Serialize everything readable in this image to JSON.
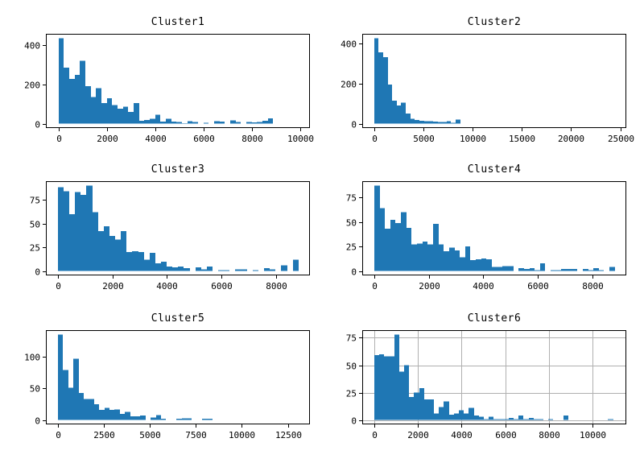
{
  "figure": {
    "background": "#ffffff",
    "rows": 3,
    "columns": 2
  },
  "colors": {
    "bar": "#1f77b4",
    "grid": "#b0b0b0",
    "axis": "#000000",
    "text": "#000000"
  },
  "chart_data": [
    {
      "type": "bar",
      "kind": "histogram",
      "title": "Cluster1",
      "xlabel": "",
      "ylabel": "",
      "bin_start": 0,
      "bin_width": 222,
      "values": [
        435,
        285,
        228,
        248,
        320,
        190,
        136,
        180,
        106,
        130,
        95,
        76,
        86,
        60,
        105,
        15,
        20,
        26,
        45,
        10,
        26,
        10,
        8,
        2,
        13,
        8,
        0,
        4,
        0,
        12,
        10,
        0,
        18,
        8,
        0,
        8,
        6,
        8,
        15,
        28
      ],
      "xlim": [
        -520,
        10400
      ],
      "ylim": [
        -21.8,
        456.8
      ],
      "xticks": [
        0,
        2000,
        4000,
        6000,
        8000,
        10000
      ],
      "yticks": [
        0,
        200,
        400
      ],
      "grid": false
    },
    {
      "type": "bar",
      "kind": "histogram",
      "title": "Cluster2",
      "xlabel": "",
      "ylabel": "",
      "bin_start": 0,
      "bin_width": 460,
      "values": [
        425,
        355,
        330,
        195,
        115,
        90,
        105,
        50,
        25,
        18,
        15,
        13,
        12,
        10,
        8,
        8,
        12,
        5,
        20
      ],
      "xlim": [
        -1200,
        25600
      ],
      "ylim": [
        -21.3,
        446.3
      ],
      "xticks": [
        0,
        5000,
        10000,
        15000,
        20000,
        25000
      ],
      "yticks": [
        0,
        200,
        400
      ],
      "grid": false
    },
    {
      "type": "bar",
      "kind": "histogram",
      "title": "Cluster3",
      "xlabel": "",
      "ylabel": "",
      "bin_start": 0,
      "bin_width": 210,
      "values": [
        88,
        84,
        60,
        83,
        80,
        90,
        62,
        42,
        47,
        37,
        33,
        42,
        20,
        21,
        20,
        12,
        19,
        8,
        10,
        5,
        4,
        5,
        3,
        0,
        4,
        2,
        5,
        0,
        1,
        1,
        0,
        2,
        2,
        0,
        1,
        0,
        3,
        2,
        0,
        6,
        0,
        12
      ],
      "xlim": [
        -440,
        9240
      ],
      "ylim": [
        -4.5,
        94.5
      ],
      "xticks": [
        0,
        2000,
        4000,
        6000,
        8000
      ],
      "yticks": [
        0,
        25,
        50,
        75
      ],
      "grid": false
    },
    {
      "type": "bar",
      "kind": "histogram",
      "title": "Cluster4",
      "xlabel": "",
      "ylabel": "",
      "bin_start": 0,
      "bin_width": 196,
      "values": [
        87,
        64,
        43,
        52,
        49,
        60,
        44,
        27,
        28,
        30,
        27,
        48,
        27,
        20,
        24,
        21,
        14,
        25,
        11,
        12,
        13,
        12,
        4,
        4,
        5,
        5,
        0,
        3,
        2,
        3,
        1,
        8,
        0,
        1,
        1,
        2,
        2,
        2,
        0,
        2,
        1,
        3,
        1,
        0,
        4
      ],
      "xlim": [
        -440,
        9240
      ],
      "ylim": [
        -4.4,
        91.4
      ],
      "xticks": [
        0,
        2000,
        4000,
        6000,
        8000
      ],
      "yticks": [
        0,
        25,
        50,
        75
      ],
      "grid": false
    },
    {
      "type": "bar",
      "kind": "histogram",
      "title": "Cluster5",
      "xlabel": "",
      "ylabel": "",
      "bin_start": 0,
      "bin_width": 280,
      "values": [
        135,
        79,
        51,
        97,
        43,
        33,
        33,
        25,
        16,
        19,
        16,
        17,
        10,
        13,
        6,
        6,
        7,
        0,
        4,
        8,
        2,
        0,
        0,
        2,
        3,
        3,
        0,
        0,
        2,
        2
      ],
      "xlim": [
        -660,
        13700
      ],
      "ylim": [
        -6.8,
        141.8
      ],
      "xticks": [
        0,
        2500,
        5000,
        7500,
        10000,
        12500
      ],
      "yticks": [
        0,
        50,
        100
      ],
      "grid": false
    },
    {
      "type": "bar",
      "kind": "histogram",
      "title": "Cluster6",
      "xlabel": "",
      "ylabel": "",
      "bin_start": 0,
      "bin_width": 228,
      "values": [
        59,
        60,
        58,
        58,
        78,
        44,
        50,
        21,
        25,
        29,
        19,
        19,
        6,
        12,
        17,
        5,
        6,
        9,
        6,
        11,
        4,
        3,
        1,
        3,
        1,
        1,
        1,
        2,
        1,
        4,
        1,
        2,
        1,
        1,
        0,
        1,
        0,
        0,
        4,
        0,
        0,
        0,
        0,
        0,
        0,
        0,
        0,
        1
      ],
      "xlim": [
        -550,
        11550
      ],
      "ylim": [
        -3.9,
        81.9
      ],
      "xticks": [
        0,
        2000,
        4000,
        6000,
        8000,
        10000
      ],
      "yticks": [
        0,
        25,
        50,
        75
      ],
      "grid": true
    }
  ]
}
